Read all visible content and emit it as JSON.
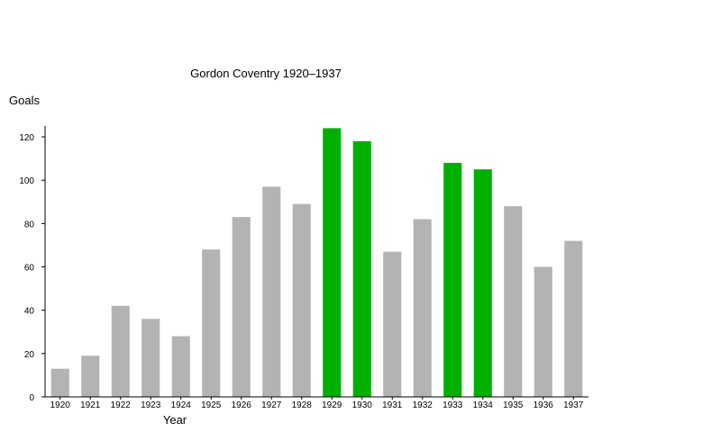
{
  "chart_data": {
    "type": "bar",
    "title": "Gordon Coventry 1920–1937",
    "xlabel": "Year",
    "ylabel": "Goals",
    "ylim": [
      0,
      125
    ],
    "yticks": [
      0,
      20,
      40,
      60,
      80,
      100,
      120
    ],
    "grid": false,
    "legend": "none",
    "categories": [
      "1920",
      "1921",
      "1922",
      "1923",
      "1924",
      "1925",
      "1926",
      "1927",
      "1928",
      "1929",
      "1930",
      "1931",
      "1932",
      "1933",
      "1934",
      "1935",
      "1936",
      "1937"
    ],
    "values": [
      13,
      19,
      42,
      36,
      28,
      68,
      83,
      97,
      89,
      124,
      118,
      67,
      82,
      108,
      105,
      88,
      60,
      72
    ],
    "highlighted": [
      false,
      false,
      false,
      false,
      false,
      false,
      false,
      false,
      false,
      true,
      true,
      false,
      false,
      true,
      true,
      false,
      false,
      false
    ],
    "colors": {
      "default": "#b3b3b3",
      "highlight": "#00b000",
      "axis": "#000000"
    }
  }
}
